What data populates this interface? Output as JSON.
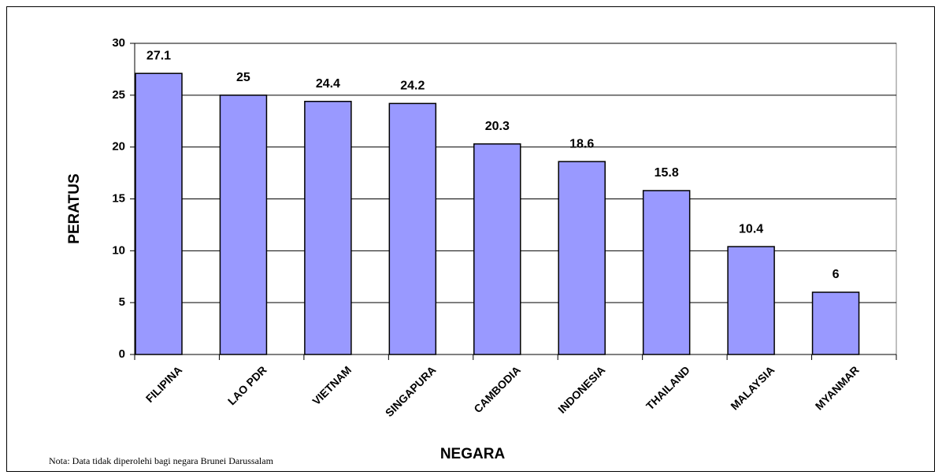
{
  "chart_data": {
    "type": "bar",
    "categories": [
      "FILIPINA",
      "LAO PDR",
      "VIETNAM",
      "SINGAPURA",
      "CAMBODIA",
      "INDONESIA",
      "THAILAND",
      "MALAYSIA",
      "MYANMAR"
    ],
    "values": [
      27.1,
      25,
      24.4,
      24.2,
      20.3,
      18.6,
      15.8,
      10.4,
      6
    ],
    "color": "#9999ff",
    "ylim": [
      0,
      30
    ],
    "yticks": [
      0,
      5,
      10,
      15,
      20,
      25,
      30
    ],
    "grid": true,
    "x_label": "NEGARA",
    "y_label": "PERATUS",
    "note": "Nota: Data tidak diperolehi bagi negara Brunei Darussalam"
  }
}
